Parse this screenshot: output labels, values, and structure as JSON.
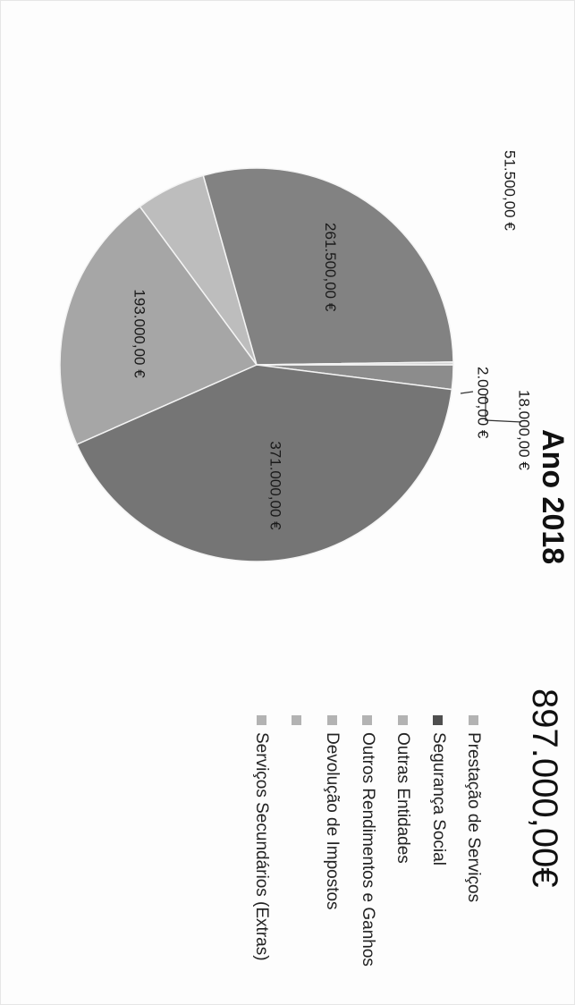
{
  "chart_data": {
    "type": "pie",
    "title": "Ano 2018",
    "total": "897.000,00€",
    "values": [
      18000,
      371000,
      193000,
      51500,
      261500,
      2000
    ],
    "slice_labels": [
      "18.000,00 €",
      "371.000,00 €",
      "193.000,00 €",
      "51.500,00 €",
      "261.500,00 €",
      "2.000,00 €"
    ],
    "slice_colors": [
      "#8c8c8c",
      "#757575",
      "#a6a6a6",
      "#bdbdbd",
      "#828282",
      "#d2d2d2"
    ],
    "legend": [
      {
        "label": "Prestação de Serviços",
        "color": "#b3b3b3"
      },
      {
        "label": "Segurança Social",
        "color": "#4f4f4f"
      },
      {
        "label": "Outras Entidades",
        "color": "#b3b3b3"
      },
      {
        "label": "Outros Rendimentos e Ganhos",
        "color": "#b3b3b3"
      },
      {
        "label": "Devolução de Impostos",
        "color": "#b3b3b3"
      },
      {
        "label": "",
        "color": "#b3b3b3"
      },
      {
        "label": "Serviços Secundários (Extras)",
        "color": "#b3b3b3"
      }
    ]
  }
}
